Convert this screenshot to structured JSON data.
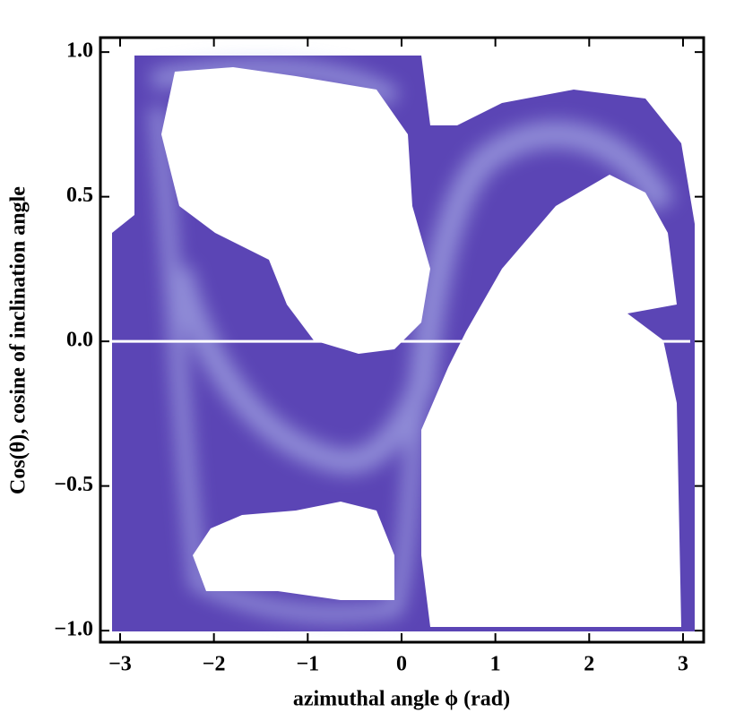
{
  "chart_data": {
    "type": "density",
    "xlabel": "azimuthal angle ϕ (rad)",
    "ylabel": "Cos(θ),  cosine of  inclination  angle",
    "xlim": [
      -3.21,
      3.22
    ],
    "ylim": [
      -1.04,
      1.05
    ],
    "xticks": [
      {
        "value": -3,
        "label": "−3"
      },
      {
        "value": -2,
        "label": "−2"
      },
      {
        "value": -1,
        "label": "−1"
      },
      0,
      1,
      2,
      3
    ],
    "yticks": [
      {
        "value": -1,
        "label": "−1.0"
      },
      {
        "value": -0.5,
        "label": "−0.5"
      },
      {
        "value": 0,
        "label": "0.0"
      },
      {
        "value": 0.5,
        "label": "0.5"
      },
      {
        "value": 1,
        "label": "1.0"
      }
    ],
    "color": "#5b45b5"
  }
}
